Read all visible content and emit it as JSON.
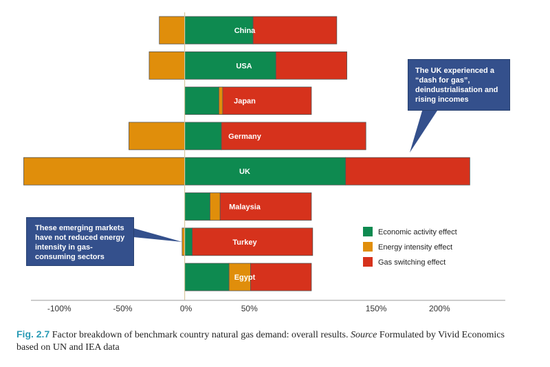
{
  "colors": {
    "economic": "#0e8a50",
    "energy": "#e08e0b",
    "gas": "#d6321c",
    "callout_bg": "#34508c",
    "axis": "#bbbbbb",
    "zero_line": "#d8c8a0",
    "figure_number": "#2a9bb5"
  },
  "chart_data": {
    "type": "bar",
    "orientation": "horizontal",
    "stacked": true,
    "categories": [
      "China",
      "USA",
      "Japan",
      "Germany",
      "UK",
      "Malaysia",
      "Turkey",
      "Egypt"
    ],
    "series": [
      {
        "name": "Economic activity effect",
        "color_key": "economic",
        "values": [
          54,
          72,
          27,
          29,
          127,
          20,
          6,
          35
        ]
      },
      {
        "name": "Energy intensity effect",
        "color_key": "energy",
        "values": [
          -20,
          -28,
          3,
          -44,
          -127,
          8,
          -2,
          17
        ]
      },
      {
        "name": "Gas switching effect",
        "color_key": "gas",
        "values": [
          66,
          56,
          70,
          114,
          98,
          72,
          95,
          48
        ]
      }
    ],
    "xlim": [
      -124,
      253
    ],
    "x_ticks": [
      {
        "value": -100,
        "label": "-100%"
      },
      {
        "value": -50,
        "label": "-50%"
      },
      {
        "value": 0,
        "label": "0%"
      },
      {
        "value": 50,
        "label": "50%"
      },
      {
        "value": 150,
        "label": "150%"
      },
      {
        "value": 200,
        "label": "200%"
      }
    ],
    "grid": false,
    "legend": "right",
    "annotations": [
      "The UK experienced a “dash for gas”, deindustrialisation and rising incomes",
      "These emerging markets have not reduced energy intensity in gas-consuming sectors"
    ]
  },
  "caption": {
    "figure_number": "Fig. 2.7",
    "text_before_source": "Factor breakdown of benchmark country natural gas demand: overall results.",
    "source_word": "Source",
    "text_after_source": "Formulated by Vivid Economics based on UN and IEA data"
  }
}
